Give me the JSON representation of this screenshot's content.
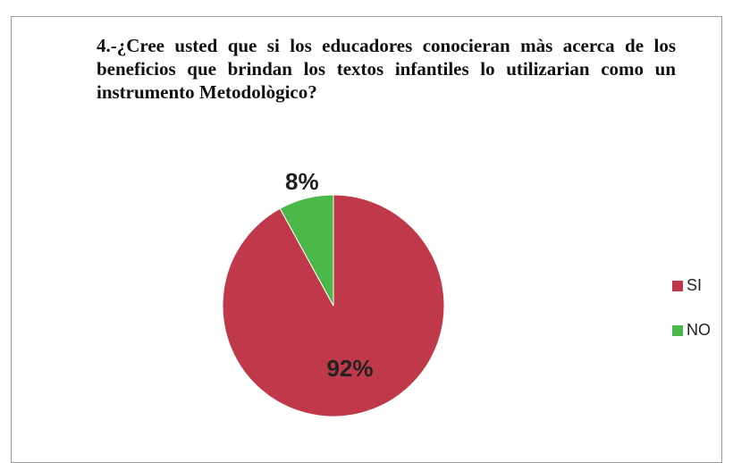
{
  "chart_data": {
    "type": "pie",
    "title": "4.-¿Cree usted que si los educadores conocieran màs acerca de los beneficios que brindan los textos infantiles lo utilizarian como un instrumento Metodològico?",
    "categories": [
      "SI",
      "NO"
    ],
    "values": [
      92,
      8
    ],
    "value_labels": [
      "92%",
      "8%"
    ],
    "colors": [
      "#c0394a",
      "#4cb84a"
    ],
    "legend": "right"
  }
}
